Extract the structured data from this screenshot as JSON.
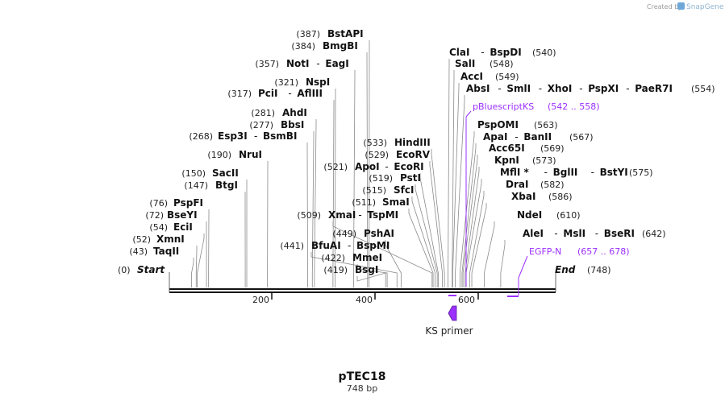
{
  "sequence": {
    "name": "pTEC18",
    "length_label": "748 bp",
    "length": 748
  },
  "credit": {
    "prefix": "Created by",
    "brand": "SnapGene"
  },
  "terminals": {
    "start": {
      "label": "Start",
      "pos": "(0)"
    },
    "end": {
      "label": "End",
      "pos": "(748)"
    }
  },
  "ticks": [
    "200",
    "400",
    "600"
  ],
  "enzymes_left": [
    {
      "pos": "(387)",
      "names": [
        "BstAPI"
      ]
    },
    {
      "pos": "(384)",
      "names": [
        "BmgBI"
      ]
    },
    {
      "pos": "(357)",
      "names": [
        "NotI",
        "EagI"
      ]
    },
    {
      "pos": "(321)",
      "names": [
        "NspI"
      ]
    },
    {
      "pos": "(317)",
      "names": [
        "PciI",
        "AflIII"
      ]
    },
    {
      "pos": "(281)",
      "names": [
        "AhdI"
      ]
    },
    {
      "pos": "(277)",
      "names": [
        "BbsI"
      ]
    },
    {
      "pos": "(268)",
      "names": [
        "Esp3I",
        "BsmBI"
      ]
    },
    {
      "pos": "(190)",
      "names": [
        "NruI"
      ]
    },
    {
      "pos": "(150)",
      "names": [
        "SacII"
      ]
    },
    {
      "pos": "(147)",
      "names": [
        "BtgI"
      ]
    },
    {
      "pos": "(76)",
      "names": [
        "PspFI"
      ]
    },
    {
      "pos": "(72)",
      "names": [
        "BseYI"
      ]
    },
    {
      "pos": "(54)",
      "names": [
        "EciI"
      ]
    },
    {
      "pos": "(52)",
      "names": [
        "XmnI"
      ]
    },
    {
      "pos": "(43)",
      "names": [
        "TaqII"
      ]
    },
    {
      "pos": "(509)",
      "names": [
        "XmaI",
        "TspMI"
      ]
    },
    {
      "pos": "(441)",
      "names": [
        "BfuAI",
        "BspMI"
      ]
    },
    {
      "pos": "(422)",
      "names": [
        "MmeI"
      ]
    },
    {
      "pos": "(419)",
      "names": [
        "BsgI"
      ]
    }
  ],
  "enzymes_middle": [
    {
      "pos": "(533)",
      "names": [
        "HindIII"
      ]
    },
    {
      "pos": "(529)",
      "names": [
        "EcoRV"
      ]
    },
    {
      "pos": "(521)",
      "names": [
        "ApoI",
        "EcoRI"
      ]
    },
    {
      "pos": "(519)",
      "names": [
        "PstI"
      ]
    },
    {
      "pos": "(515)",
      "names": [
        "SfcI"
      ]
    },
    {
      "pos": "(511)",
      "names": [
        "SmaI"
      ]
    },
    {
      "pos": "(449)",
      "names": [
        "PshAI"
      ]
    }
  ],
  "enzymes_right": [
    {
      "pos": "(540)",
      "names": [
        "ClaI",
        "BspDI"
      ]
    },
    {
      "pos": "(548)",
      "names": [
        "SalI"
      ]
    },
    {
      "pos": "(549)",
      "names": [
        "AccI"
      ]
    },
    {
      "pos": "(554)",
      "names": [
        "AbsI",
        "SmlI",
        "XhoI",
        "PspXI",
        "PaeR7I"
      ]
    },
    {
      "pos": "(563)",
      "names": [
        "PspOMI"
      ]
    },
    {
      "pos": "(567)",
      "names": [
        "ApaI",
        "BanII"
      ]
    },
    {
      "pos": "(569)",
      "names": [
        "Acc65I"
      ]
    },
    {
      "pos": "(573)",
      "names": [
        "KpnI"
      ]
    },
    {
      "pos": "(575)",
      "names": [
        "MflI *",
        "BglII",
        "BstYI"
      ]
    },
    {
      "pos": "(582)",
      "names": [
        "DraI"
      ]
    },
    {
      "pos": "(586)",
      "names": [
        "XbaI"
      ]
    },
    {
      "pos": "(610)",
      "names": [
        "NdeI"
      ]
    },
    {
      "pos": "(642)",
      "names": [
        "AleI",
        "MslI",
        "BseRI"
      ]
    }
  ],
  "features": [
    {
      "name": "pBluescriptKS",
      "range": "(542 .. 558)",
      "color": "#9b30ff"
    },
    {
      "name": "EGFP-N",
      "range": "(657 .. 678)",
      "color": "#9b30ff"
    }
  ],
  "primer": {
    "name": "KS primer",
    "color": "#9b30ff"
  }
}
